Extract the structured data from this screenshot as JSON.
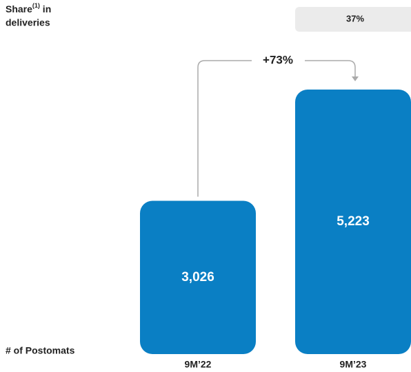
{
  "chart_data": {
    "type": "bar",
    "categories": [
      "9M’22",
      "9M’23"
    ],
    "values": [
      3026,
      5223
    ],
    "value_labels": [
      "3,026",
      "5,223"
    ],
    "color": "#0a7fc4",
    "value_axis_label": "# of Postomats",
    "share_label": {
      "main": "Share",
      "superscript": "(1)",
      "suffix": " in",
      "line2": "deliveries"
    },
    "share": {
      "values": [
        null,
        37
      ],
      "value_labels": [
        null,
        "37%"
      ],
      "color": "#ebebeb"
    },
    "annotation": {
      "value": 73,
      "label": "+73%"
    }
  }
}
